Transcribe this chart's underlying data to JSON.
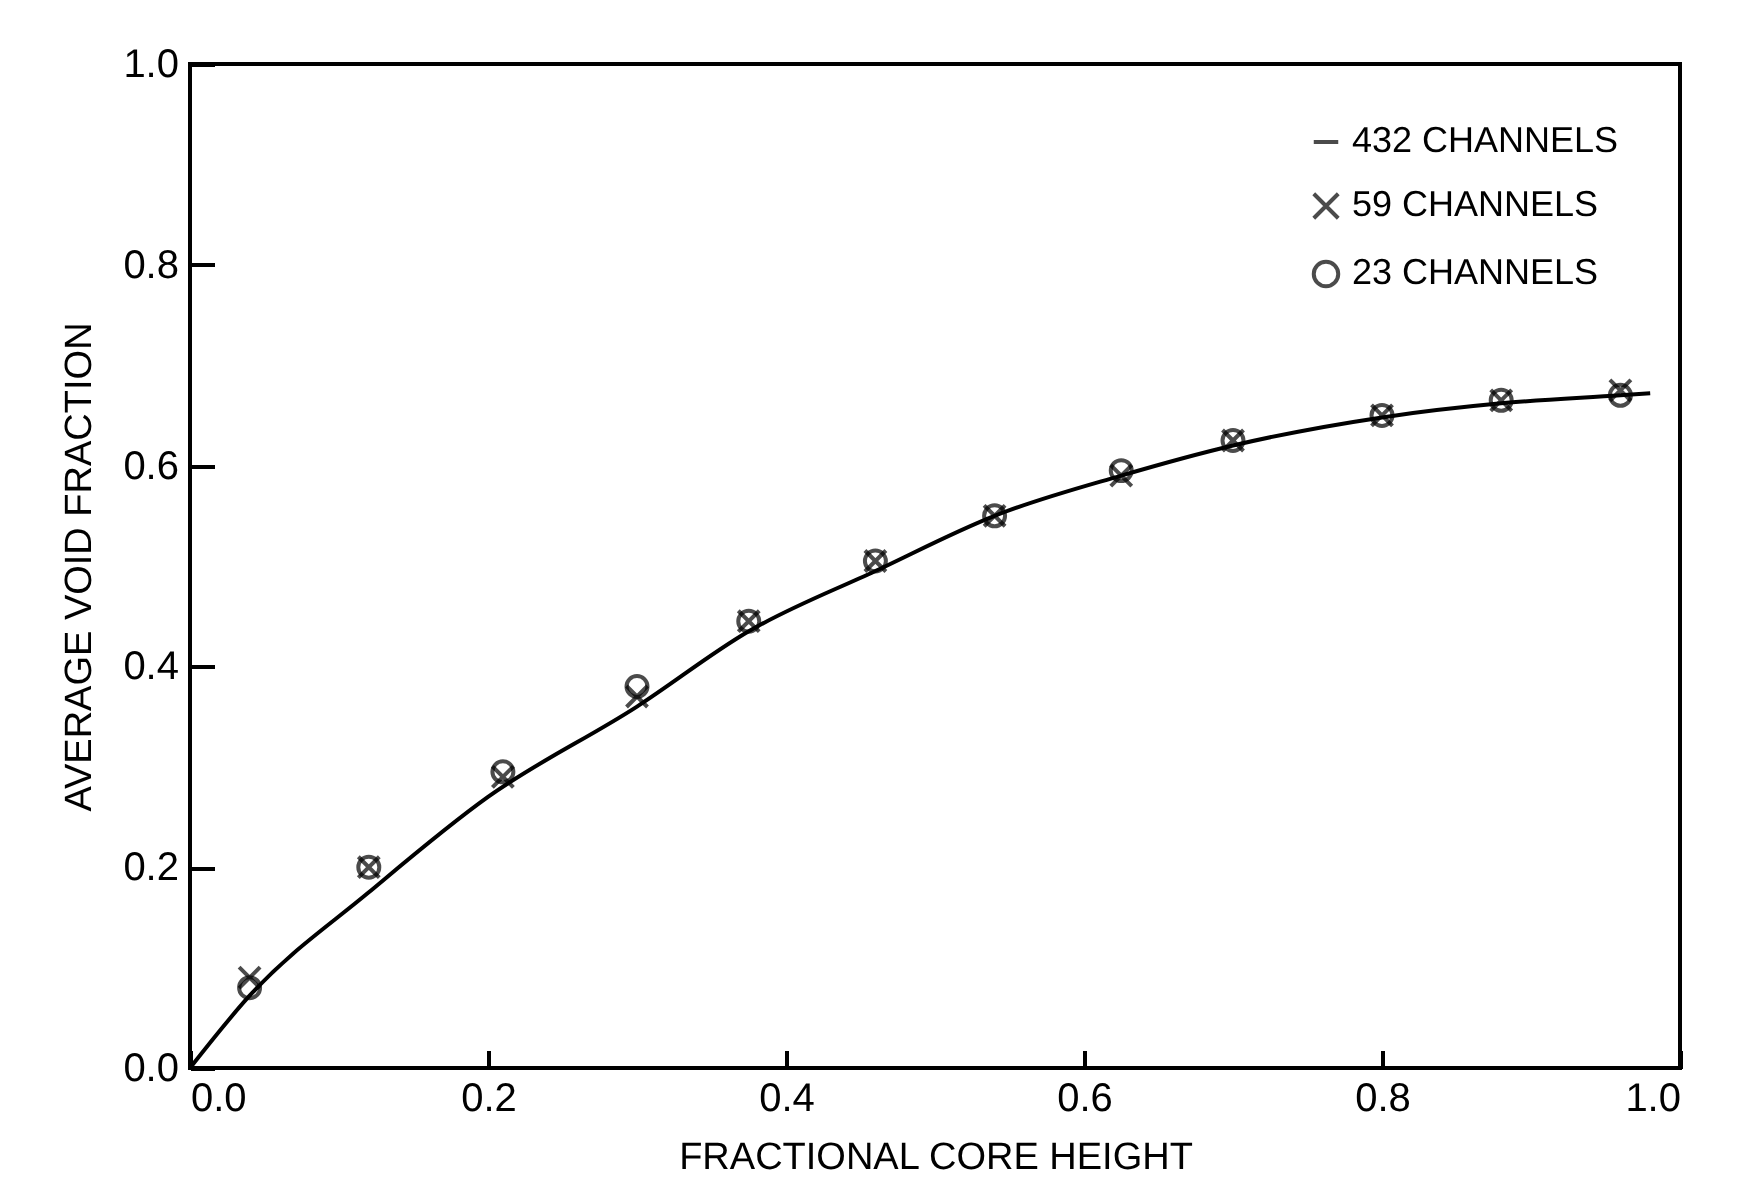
{
  "chart_data": {
    "type": "line",
    "xlabel": "FRACTIONAL CORE HEIGHT",
    "ylabel": "AVERAGE VOID FRACTION",
    "xlim": [
      0,
      1
    ],
    "ylim": [
      0,
      1
    ],
    "xticks": [
      {
        "value": 0,
        "label": "0.0"
      },
      0.2,
      0.4,
      0.6,
      0.8,
      {
        "value": 1,
        "label": "1.0"
      }
    ],
    "yticks": [
      {
        "value": 0,
        "label": "0.0"
      },
      0.2,
      0.4,
      0.6,
      0.8,
      {
        "value": 1,
        "label": "1.0"
      }
    ],
    "legend": "top right",
    "grid": false,
    "series": [
      {
        "name": "432 CHANNELS",
        "color": "#000000",
        "line_style": "solid",
        "x": [
          0,
          0.04,
          0.12,
          0.2,
          0.3,
          0.375,
          0.46,
          0.54,
          0.625,
          0.7,
          0.8,
          0.88,
          0.96,
          0.98
        ],
        "values": [
          0,
          0.072,
          0.175,
          0.27,
          0.36,
          0.435,
          0.495,
          0.55,
          0.59,
          0.62,
          0.648,
          0.662,
          0.67,
          0.672
        ]
      },
      {
        "name": "59 CHANNELS",
        "type": "scatter",
        "marker": "cross",
        "color": "#000000",
        "x": [
          0.04,
          0.12,
          0.21,
          0.3,
          0.375,
          0.46,
          0.54,
          0.625,
          0.7,
          0.8,
          0.88,
          0.96
        ],
        "values": [
          0.09,
          0.2,
          0.29,
          0.37,
          0.445,
          0.505,
          0.55,
          0.59,
          0.625,
          0.65,
          0.665,
          0.675
        ]
      },
      {
        "name": "23 CHANNELS",
        "type": "scatter",
        "marker": "circle",
        "color": "#000000",
        "x": [
          0.04,
          0.12,
          0.21,
          0.3,
          0.375,
          0.46,
          0.54,
          0.625,
          0.7,
          0.8,
          0.88,
          0.96
        ],
        "values": [
          0.08,
          0.2,
          0.295,
          0.38,
          0.445,
          0.505,
          0.55,
          0.595,
          0.625,
          0.65,
          0.665,
          0.67
        ]
      }
    ]
  }
}
